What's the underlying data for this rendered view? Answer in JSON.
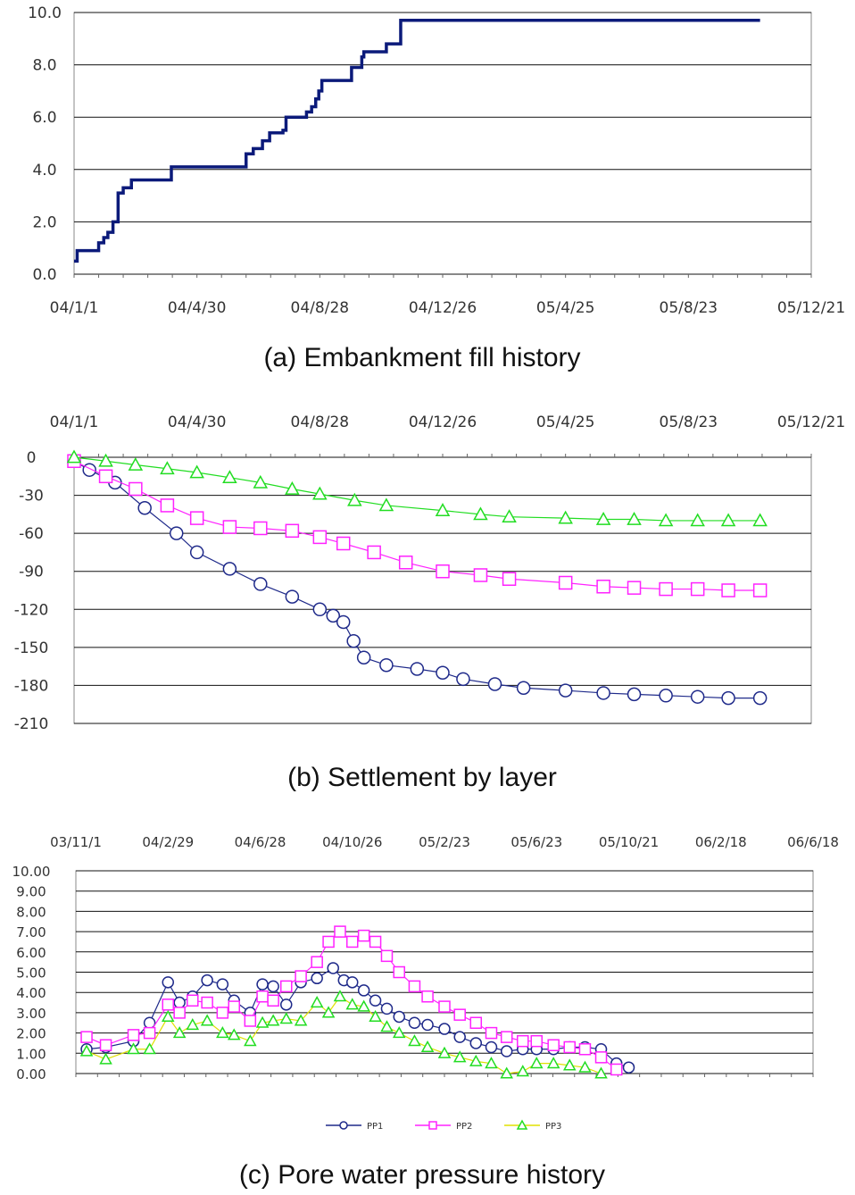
{
  "colors": {
    "grid": "#111111",
    "fill_line": "#0b1a7a",
    "pp1": "#1f2a8a",
    "pp2": "#ff22ff",
    "pp3": "#22dd22",
    "pp3_line": "#e0e000"
  },
  "chart_data": [
    {
      "id": "a",
      "type": "line",
      "caption": "(a) Embankment fill history",
      "title": "",
      "xlabel": "",
      "ylabel": "",
      "ylim": [
        0,
        10
      ],
      "yticks": [
        "0.0",
        "2.0",
        "4.0",
        "6.0",
        "8.0",
        "10.0"
      ],
      "xticks": [
        "04/1/1",
        "04/4/30",
        "04/8/28",
        "04/12/26",
        "05/4/25",
        "05/8/23",
        "05/12/21"
      ],
      "grid": true,
      "series": [
        {
          "x": [
            "04/1/1",
            "04/1/4",
            "04/1/22",
            "04/1/25",
            "04/1/30",
            "04/2/3",
            "04/2/8",
            "04/2/13",
            "04/2/18",
            "04/2/26",
            "04/3/25",
            "04/4/5",
            "04/5/20",
            "04/6/15",
            "04/6/17",
            "04/6/24",
            "04/7/3",
            "04/7/10",
            "04/7/23",
            "04/7/26",
            "04/8/15",
            "04/8/20",
            "04/8/24",
            "04/8/27",
            "04/8/30",
            "04/9/25",
            "04/9/28",
            "04/10/8",
            "04/10/10",
            "04/10/30",
            "04/11/1",
            "04/11/15",
            "05/11/1"
          ],
          "values": [
            0.5,
            0.9,
            0.9,
            1.2,
            1.4,
            1.6,
            2.0,
            3.1,
            3.3,
            3.6,
            3.6,
            4.1,
            4.1,
            4.1,
            4.6,
            4.8,
            5.1,
            5.4,
            5.5,
            6.0,
            6.2,
            6.4,
            6.7,
            7.0,
            7.4,
            7.4,
            7.9,
            8.3,
            8.5,
            8.5,
            8.8,
            9.7,
            9.7
          ]
        }
      ]
    },
    {
      "id": "b",
      "type": "scatter",
      "caption": "(b) Settlement by layer",
      "title": "",
      "xlabel": "",
      "ylabel": "",
      "ylim": [
        -210,
        0
      ],
      "yticks": [
        "0",
        "-30",
        "-60",
        "-90",
        "-120",
        "-150",
        "-180",
        "-210"
      ],
      "xticks": [
        "04/1/1",
        "04/4/30",
        "04/8/28",
        "04/12/26",
        "05/4/25",
        "05/8/23",
        "05/12/21"
      ],
      "grid": true,
      "series": [
        {
          "marker": "circle",
          "x": [
            "04/1/1",
            "04/1/16",
            "04/2/10",
            "04/3/10",
            "04/4/10",
            "04/4/30",
            "04/6/1",
            "04/7/1",
            "04/8/1",
            "04/8/28",
            "04/9/10",
            "04/9/20",
            "04/9/30",
            "04/10/10",
            "04/11/1",
            "04/12/1",
            "04/12/26",
            "05/1/15",
            "05/2/15",
            "05/3/15",
            "05/4/25",
            "05/6/1",
            "05/7/1",
            "05/8/1",
            "05/9/1",
            "05/10/1",
            "05/11/1"
          ],
          "values": [
            -3,
            -10,
            -20,
            -40,
            -60,
            -75,
            -88,
            -100,
            -110,
            -120,
            -125,
            -130,
            -145,
            -158,
            -164,
            -167,
            -170,
            -175,
            -179,
            -182,
            -184,
            -186,
            -187,
            -188,
            -189,
            -190,
            -190
          ]
        },
        {
          "marker": "square",
          "x": [
            "04/1/1",
            "04/2/1",
            "04/3/1",
            "04/4/1",
            "04/4/30",
            "04/6/1",
            "04/7/1",
            "04/8/1",
            "04/8/28",
            "04/9/20",
            "04/10/20",
            "04/11/20",
            "04/12/26",
            "05/2/1",
            "05/3/1",
            "05/4/25",
            "05/6/1",
            "05/7/1",
            "05/8/1",
            "05/9/1",
            "05/10/1",
            "05/11/1"
          ],
          "values": [
            -3,
            -15,
            -25,
            -38,
            -48,
            -55,
            -56,
            -58,
            -63,
            -68,
            -75,
            -83,
            -90,
            -93,
            -96,
            -99,
            -102,
            -103,
            -104,
            -104,
            -105,
            -105
          ]
        },
        {
          "marker": "triangle",
          "x": [
            "04/1/1",
            "04/2/1",
            "04/3/1",
            "04/4/1",
            "04/4/30",
            "04/6/1",
            "04/7/1",
            "04/8/1",
            "04/8/28",
            "04/10/1",
            "04/11/1",
            "04/12/26",
            "05/2/1",
            "05/3/1",
            "05/4/25",
            "05/6/1",
            "05/7/1",
            "05/8/1",
            "05/9/1",
            "05/10/1",
            "05/11/1"
          ],
          "values": [
            0,
            -3,
            -6,
            -9,
            -12,
            -16,
            -20,
            -25,
            -29,
            -34,
            -38,
            -42,
            -45,
            -47,
            -48,
            -49,
            -49,
            -50,
            -50,
            -50,
            -50
          ]
        }
      ]
    },
    {
      "id": "c",
      "type": "line",
      "caption": "(c) Pore water pressure history",
      "title": "",
      "xlabel": "",
      "ylabel": "",
      "ylim": [
        0,
        10
      ],
      "yticks": [
        "0.00",
        "1.00",
        "2.00",
        "3.00",
        "4.00",
        "5.00",
        "6.00",
        "7.00",
        "8.00",
        "9.00",
        "10.00"
      ],
      "xticks": [
        "03/11/1",
        "04/2/29",
        "04/6/28",
        "04/10/26",
        "05/2/23",
        "05/6/23",
        "05/10/21",
        "06/2/18",
        "06/6/18"
      ],
      "legend": [
        "PP1",
        "PP2",
        "PP3"
      ],
      "legend_position": "bottom",
      "grid": true,
      "series": [
        {
          "name": "PP1",
          "marker": "circle",
          "x": [
            "03/11/15",
            "03/12/10",
            "04/1/15",
            "04/2/5",
            "04/2/29",
            "04/3/15",
            "04/4/1",
            "04/4/20",
            "04/5/10",
            "04/5/25",
            "04/6/15",
            "04/7/1",
            "04/7/15",
            "04/8/1",
            "04/8/20",
            "04/9/10",
            "04/10/1",
            "04/10/15",
            "04/10/26",
            "04/11/10",
            "04/11/25",
            "04/12/10",
            "04/12/26",
            "05/1/15",
            "05/2/1",
            "05/2/23",
            "05/3/15",
            "05/4/5",
            "05/4/25",
            "05/5/15",
            "05/6/5",
            "05/6/23",
            "05/7/15",
            "05/8/5",
            "05/8/25",
            "05/9/15",
            "05/10/5",
            "05/10/21"
          ],
          "values": [
            1.2,
            1.3,
            1.6,
            2.5,
            4.5,
            3.5,
            3.8,
            4.6,
            4.4,
            3.6,
            3.0,
            4.4,
            4.3,
            3.4,
            4.5,
            4.7,
            5.2,
            4.6,
            4.5,
            4.1,
            3.6,
            3.2,
            2.8,
            2.5,
            2.4,
            2.2,
            1.8,
            1.5,
            1.3,
            1.1,
            1.2,
            1.2,
            1.2,
            1.3,
            1.3,
            1.2,
            0.5,
            0.3
          ]
        },
        {
          "name": "PP2",
          "marker": "square",
          "x": [
            "03/11/15",
            "03/12/10",
            "04/1/15",
            "04/2/5",
            "04/2/29",
            "04/3/15",
            "04/4/1",
            "04/4/20",
            "04/5/10",
            "04/5/25",
            "04/6/15",
            "04/7/1",
            "04/7/15",
            "04/8/1",
            "04/8/20",
            "04/9/10",
            "04/9/25",
            "04/10/10",
            "04/10/26",
            "04/11/10",
            "04/11/25",
            "04/12/10",
            "04/12/26",
            "05/1/15",
            "05/2/1",
            "05/2/23",
            "05/3/15",
            "05/4/5",
            "05/4/25",
            "05/5/15",
            "05/6/5",
            "05/6/23",
            "05/7/15",
            "05/8/5",
            "05/8/25",
            "05/9/15",
            "05/10/5"
          ],
          "values": [
            1.8,
            1.4,
            1.9,
            2.0,
            3.4,
            3.0,
            3.6,
            3.5,
            3.0,
            3.3,
            2.6,
            3.8,
            3.6,
            4.3,
            4.8,
            5.5,
            6.5,
            7.0,
            6.5,
            6.8,
            6.5,
            5.8,
            5.0,
            4.3,
            3.8,
            3.3,
            2.9,
            2.5,
            2.0,
            1.8,
            1.6,
            1.6,
            1.4,
            1.3,
            1.2,
            0.8,
            0.2
          ]
        },
        {
          "name": "PP3",
          "marker": "triangle",
          "x": [
            "03/11/15",
            "03/12/10",
            "04/1/15",
            "04/2/5",
            "04/2/29",
            "04/3/15",
            "04/4/1",
            "04/4/20",
            "04/5/10",
            "04/5/25",
            "04/6/15",
            "04/7/1",
            "04/7/15",
            "04/8/1",
            "04/8/20",
            "04/9/10",
            "04/9/25",
            "04/10/10",
            "04/10/26",
            "04/11/10",
            "04/11/25",
            "04/12/10",
            "04/12/26",
            "05/1/15",
            "05/2/1",
            "05/2/23",
            "05/3/15",
            "05/4/5",
            "05/4/25",
            "05/5/15",
            "05/6/5",
            "05/6/23",
            "05/7/15",
            "05/8/5",
            "05/8/25",
            "05/9/15"
          ],
          "values": [
            1.1,
            0.7,
            1.2,
            1.2,
            2.8,
            2.0,
            2.4,
            2.6,
            2.0,
            1.9,
            1.6,
            2.5,
            2.6,
            2.7,
            2.6,
            3.5,
            3.0,
            3.8,
            3.4,
            3.3,
            2.8,
            2.3,
            2.0,
            1.6,
            1.3,
            1.0,
            0.8,
            0.6,
            0.5,
            0.0,
            0.1,
            0.5,
            0.5,
            0.4,
            0.3,
            0.0
          ]
        }
      ]
    }
  ]
}
